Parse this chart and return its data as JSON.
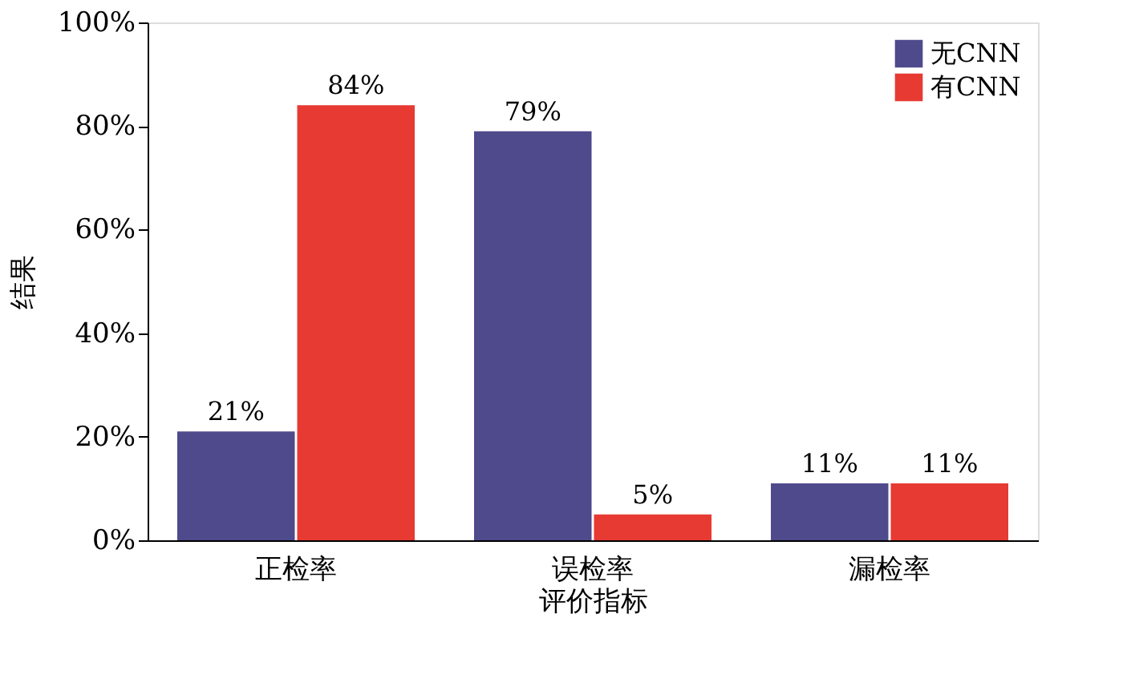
{
  "chart_data": {
    "type": "bar",
    "xlabel": "评价指标",
    "ylabel": "结果",
    "categories": [
      "正检率",
      "误检率",
      "漏检率"
    ],
    "series": [
      {
        "name": "无CNN",
        "color": "#4f4a8c",
        "values": [
          21,
          79,
          11
        ],
        "value_labels": [
          "21%",
          "79%",
          "11%"
        ]
      },
      {
        "name": "有CNN",
        "color": "#e63a33",
        "values": [
          84,
          5,
          11
        ],
        "value_labels": [
          "84%",
          "5%",
          "11%"
        ]
      }
    ],
    "ylim": [
      0,
      100
    ],
    "yticks": [
      {
        "value": 0,
        "label": "0%"
      },
      {
        "value": 20,
        "label": "20%"
      },
      {
        "value": 40,
        "label": "40%"
      },
      {
        "value": 60,
        "label": "60%"
      },
      {
        "value": 80,
        "label": "80%"
      },
      {
        "value": 100,
        "label": "100%"
      }
    ],
    "legend": "top right",
    "grid": false
  }
}
